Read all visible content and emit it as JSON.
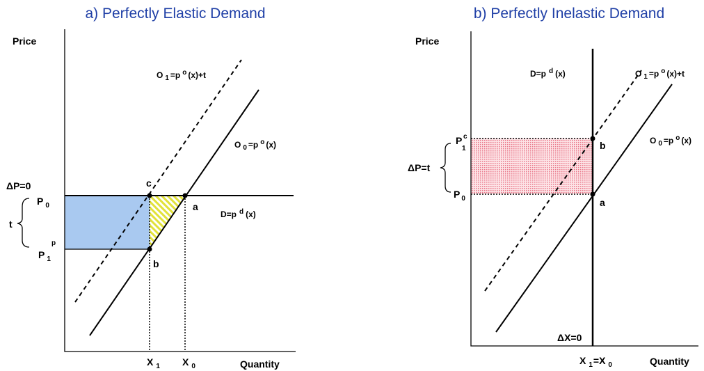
{
  "panel_a": {
    "title": "a) Perfectly Elastic Demand",
    "y_axis": "Price",
    "x_axis": "Quantity",
    "dp_label": "ΔP=0",
    "p0": "P",
    "p0_sub": "0",
    "t_label": "t",
    "p1": "P",
    "p1_sub": "1",
    "p1_sup": "p",
    "o1": "O",
    "o1_sub": "1",
    "o1_rest": "=p",
    "o1_sup": "o",
    "o1_tail": "(x)+t",
    "o0": "O",
    "o0_sub": "0",
    "o0_rest": "=p",
    "o0_sup": "o",
    "o0_tail": "(x)",
    "d": "D=p",
    "d_sup": "d",
    "d_tail": "(x)",
    "pt_a": "a",
    "pt_b": "b",
    "pt_c": "c",
    "x1": "X",
    "x1_sub": "1",
    "x0": "X",
    "x0_sub": "0"
  },
  "panel_b": {
    "title": "b) Perfectly Inelastic Demand",
    "y_axis": "Price",
    "x_axis": "Quantity",
    "d": "D=p",
    "d_sup": "d",
    "d_tail": "(x)",
    "o1": "O",
    "o1_sub": "1",
    "o1_rest": "=p",
    "o1_sup": "o",
    "o1_tail": "(x)+t",
    "o0": "O",
    "o0_sub": "0",
    "o0_rest": "=p",
    "o0_sup": "o",
    "o0_tail": "(x)",
    "pc": "P",
    "pc_sup": "c",
    "pc_sub": "1",
    "p0": "P",
    "p0_sub": "0",
    "dp_label": "ΔP=t",
    "pt_a": "a",
    "pt_b": "b",
    "dx_label": "ΔX=0",
    "xq": "X",
    "xq_sub": "1",
    "xq_mid": "=X",
    "xq_sub2": "0"
  },
  "colors": {
    "title": "#1f3fa6",
    "blue_area": "#a9c9f0",
    "yellow_hatch": "#e2e23a",
    "red_area": "#f6c2c8"
  }
}
